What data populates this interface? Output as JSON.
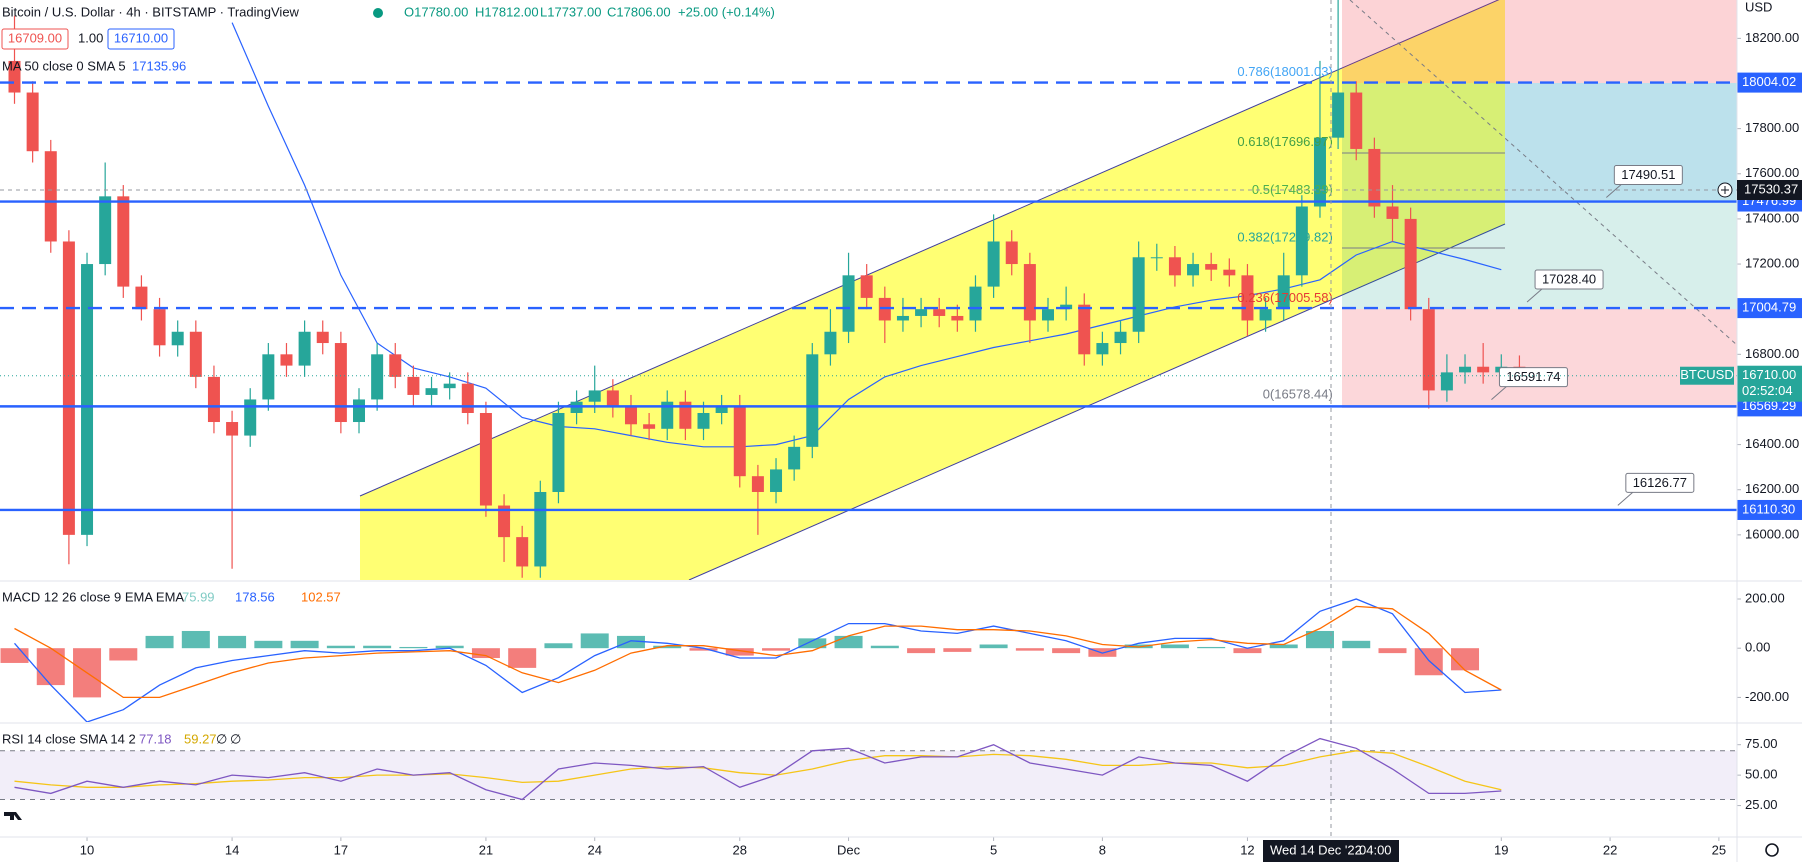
{
  "header": {
    "title": "Bitcoin / U.S. Dollar · 4h · BITSTAMP · TradingView",
    "ohlc": [
      "O17780.00",
      "H17812.00",
      "L17737.00",
      "C17806.00",
      "+25.00 (+0.14%)"
    ],
    "bid": "16709.00",
    "spread": "1.00",
    "ask": "16710.00",
    "currency": "USD",
    "symbol": "BTCUSD",
    "last_price": "16710.00",
    "countdown": "02:52:04",
    "crosshair_price": "17530.37",
    "crosshair_date": "Wed 14 Dec '22",
    "crosshair_time": "04:00"
  },
  "chart_data": [
    {
      "type": "candlestick",
      "x": [
        8,
        8.5,
        9,
        9.5,
        10,
        10.5,
        11,
        11.5,
        12,
        12.5,
        13,
        13.5,
        14,
        14.5,
        15,
        15.5,
        16,
        16.5,
        17,
        17.5,
        18,
        18.5,
        19,
        19.5,
        20,
        20.5,
        21,
        21.5,
        22,
        22.5,
        23,
        23.5,
        24,
        24.5,
        25,
        25.5,
        26,
        26.5,
        27,
        27.5,
        28,
        28.5,
        29,
        29.5,
        30,
        30.5,
        31,
        31.5,
        32,
        32.5,
        33,
        33.5,
        34,
        34.5,
        35,
        35.5,
        36,
        36.5,
        37,
        37.5,
        38,
        38.5,
        39,
        39.5,
        40,
        40.5,
        41,
        41.5,
        42,
        42.5,
        43,
        43.5,
        44,
        44.5,
        45,
        45.5,
        46,
        46.5,
        47,
        47.5,
        48,
        48.5,
        49,
        49.5
      ],
      "open": [
        18100,
        17960,
        17700,
        17300,
        16000,
        17200,
        17500,
        17100,
        17000,
        16840,
        16900,
        16700,
        16500,
        16440,
        16600,
        16800,
        16750,
        16900,
        16850,
        16500,
        16600,
        16800,
        16700,
        16620,
        16650,
        16670,
        16540,
        16130,
        15990,
        15860,
        16190,
        16540,
        16590,
        16640,
        16570,
        16490,
        16470,
        16590,
        16470,
        16540,
        16570,
        16260,
        16190,
        16290,
        16390,
        16800,
        16900,
        17150,
        17050,
        16950,
        16970,
        17000,
        16970,
        16950,
        17100,
        17300,
        17200,
        16950,
        17000,
        17020,
        16800,
        16850,
        16900,
        17230,
        17230,
        17150,
        17200,
        17175,
        17150,
        16950,
        17000,
        17150,
        17455,
        17760,
        17960,
        17710,
        17455,
        17400,
        17000,
        16640,
        16720,
        16745,
        16720,
        16745
      ],
      "high": [
        18300,
        18010,
        17750,
        17350,
        17250,
        17650,
        17550,
        17150,
        17050,
        16950,
        16950,
        16750,
        16550,
        16650,
        16850,
        16850,
        16950,
        16950,
        16900,
        16650,
        16850,
        16850,
        16750,
        16700,
        16720,
        16720,
        16590,
        16180,
        16040,
        16240,
        16590,
        16640,
        16750,
        16690,
        16620,
        16540,
        16640,
        16640,
        16590,
        16620,
        16620,
        16310,
        16340,
        16440,
        16850,
        17000,
        17250,
        17200,
        17100,
        17050,
        17050,
        17050,
        17020,
        17150,
        17420,
        17350,
        17250,
        17050,
        17100,
        17070,
        16900,
        16950,
        17300,
        17290,
        17280,
        17250,
        17250,
        17225,
        17200,
        17050,
        17250,
        17505,
        18100,
        18370,
        18010,
        17760,
        17550,
        17450,
        17050,
        16800,
        16800,
        16850,
        16800,
        16795
      ],
      "low": [
        17910,
        17650,
        17250,
        15870,
        15950,
        17150,
        17050,
        16950,
        16790,
        16790,
        16650,
        16450,
        15850,
        16390,
        16550,
        16700,
        16700,
        16800,
        16450,
        16450,
        16550,
        16650,
        16570,
        16570,
        16600,
        16490,
        16080,
        15880,
        15810,
        15810,
        16140,
        16490,
        16540,
        16520,
        16440,
        16420,
        16420,
        16420,
        16420,
        16490,
        16210,
        16000,
        16140,
        16240,
        16340,
        16750,
        16850,
        17000,
        16850,
        16900,
        16920,
        16920,
        16900,
        16900,
        17050,
        17150,
        16850,
        16900,
        16950,
        16750,
        16750,
        16800,
        16850,
        17170,
        17100,
        17100,
        17125,
        17100,
        16880,
        16900,
        16950,
        17100,
        17405,
        17710,
        17660,
        17405,
        17300,
        16950,
        16560,
        16590,
        16670,
        16670,
        16670,
        16660
      ],
      "close": [
        17960,
        17700,
        17300,
        16000,
        17200,
        17500,
        17100,
        17000,
        16840,
        16900,
        16700,
        16500,
        16440,
        16600,
        16800,
        16750,
        16900,
        16850,
        16500,
        16600,
        16800,
        16700,
        16620,
        16650,
        16670,
        16540,
        16130,
        15990,
        15860,
        16190,
        16540,
        16590,
        16640,
        16570,
        16490,
        16470,
        16590,
        16470,
        16540,
        16570,
        16260,
        16190,
        16290,
        16390,
        16800,
        16900,
        17150,
        17050,
        16950,
        16970,
        17000,
        16970,
        16950,
        17100,
        17300,
        17200,
        16950,
        17000,
        17020,
        16800,
        16850,
        16900,
        17230,
        17230,
        17150,
        17200,
        17175,
        17150,
        16950,
        17000,
        17150,
        17455,
        17760,
        17960,
        17710,
        17455,
        17400,
        17000,
        16640,
        16720,
        16745,
        16720,
        16745,
        16710
      ],
      "up_color": "#26a69a",
      "down_color": "#ef5350",
      "xlim": [
        7.6,
        55.5
      ],
      "xticks": [
        10,
        14,
        17,
        21,
        24,
        28,
        {
          "value": 31,
          "label": "Dec"
        },
        {
          "value": 35,
          "label": "5"
        },
        {
          "value": 38,
          "label": "8"
        },
        {
          "value": 42,
          "label": "12"
        },
        {
          "value": 49,
          "label": "19"
        },
        {
          "value": 52,
          "label": "22"
        },
        {
          "value": 55,
          "label": "25"
        }
      ],
      "ylim": [
        15800,
        18370
      ],
      "yticks": [
        {
          "value": 16000,
          "label": "16000.00"
        },
        {
          "value": 16200,
          "label": "16200.00"
        },
        {
          "value": 16400,
          "label": "16400.00"
        },
        {
          "value": 16800,
          "label": "16800.00"
        },
        {
          "value": 17200,
          "label": "17200.00"
        },
        {
          "value": 17400,
          "label": "17400.00"
        },
        {
          "value": 17600,
          "label": "17600.00"
        },
        {
          "value": 17800,
          "label": "17800.00"
        },
        {
          "value": 18200,
          "label": "18200.00"
        }
      ],
      "ma": {
        "name": "MA 50 close 0 SMA 5",
        "label": "17135.96",
        "color": "#2962ff",
        "x": [
          14,
          15,
          16,
          17,
          18,
          19,
          20,
          21,
          22,
          23,
          24,
          25,
          26,
          27,
          28,
          29,
          30,
          31,
          32,
          33,
          34,
          35,
          36,
          37,
          38,
          39,
          40,
          41,
          42,
          43,
          44,
          45,
          46,
          47,
          48,
          49
        ],
        "values": [
          18270,
          17900,
          17550,
          17150,
          16850,
          16740,
          16700,
          16650,
          16520,
          16480,
          16470,
          16440,
          16410,
          16390,
          16390,
          16400,
          16440,
          16600,
          16700,
          16750,
          16790,
          16830,
          16860,
          16890,
          16930,
          16970,
          17010,
          17040,
          17060,
          17090,
          17130,
          17240,
          17300,
          17260,
          17220,
          17175
        ]
      },
      "level_color": "#2962ff",
      "levels": [
        {
          "value": 18004.02,
          "label": "18004.02",
          "style": "dashed"
        },
        {
          "value": 17476.99,
          "label": "17476.99",
          "style": "solid"
        },
        {
          "value": 17004.79,
          "label": "17004.79",
          "style": "dashed"
        },
        {
          "value": 16569.29,
          "label": "16569.29",
          "style": "solid"
        },
        {
          "value": 16110.3,
          "label": "16110.30",
          "style": "solid"
        }
      ],
      "fibonacci": [
        "0.786(18001.03)",
        "0.618(17696.97)",
        "0.5(17483.39)",
        "0.382(17269.82)",
        "0.236(17005.58)",
        "0(16578.44)"
      ],
      "callouts": [
        "17490.51",
        "17028.40",
        "16591.74",
        "16126.77"
      ]
    },
    {
      "type": "macd",
      "title": "MACD 12 26 close 9 EMA EMA",
      "readout": [
        "75.99",
        "178.56",
        "102.57"
      ],
      "x": [
        8,
        9,
        10,
        11,
        12,
        13,
        14,
        15,
        16,
        17,
        18,
        19,
        20,
        21,
        22,
        23,
        24,
        25,
        26,
        27,
        28,
        29,
        30,
        31,
        32,
        33,
        34,
        35,
        36,
        37,
        38,
        39,
        40,
        41,
        42,
        43,
        44,
        45,
        46,
        47,
        48,
        49
      ],
      "macd": [
        20,
        -150,
        -300,
        -250,
        -150,
        -80,
        -50,
        -30,
        -10,
        -20,
        -10,
        -10,
        0,
        -70,
        -180,
        -120,
        -30,
        30,
        20,
        0,
        -40,
        -40,
        30,
        100,
        100,
        70,
        60,
        90,
        60,
        30,
        -20,
        20,
        40,
        40,
        0,
        30,
        150,
        200,
        140,
        -50,
        -180,
        -170
      ],
      "signal": [
        80,
        0,
        -100,
        -200,
        -200,
        -150,
        -100,
        -60,
        -40,
        -30,
        -20,
        -15,
        -10,
        -30,
        -100,
        -140,
        -90,
        -20,
        10,
        10,
        -10,
        -30,
        -10,
        50,
        90,
        90,
        75,
        75,
        70,
        50,
        15,
        5,
        25,
        35,
        20,
        15,
        80,
        170,
        160,
        60,
        -90,
        -170
      ],
      "histogram": [
        -60,
        -150,
        -200,
        -50,
        50,
        70,
        50,
        30,
        30,
        10,
        10,
        5,
        10,
        -40,
        -80,
        20,
        60,
        50,
        10,
        -10,
        -30,
        -10,
        40,
        50,
        10,
        -20,
        -15,
        15,
        -10,
        -20,
        -35,
        15,
        15,
        5,
        -20,
        15,
        70,
        30,
        -20,
        -110,
        -90,
        0
      ],
      "macd_color": "#2962ff",
      "signal_color": "#ff6d00",
      "up_color": "#26a69a",
      "down_color": "#ef5350",
      "ylim": [
        -300,
        265
      ],
      "yticks": [
        {
          "value": 200,
          "label": "200.00"
        },
        {
          "value": 0,
          "label": "0.00"
        },
        {
          "value": -200,
          "label": "-200.00"
        }
      ]
    },
    {
      "type": "rsi",
      "title": "RSI 14 close SMA 14 2",
      "readout": [
        "77.18",
        "59.27",
        "∅",
        "∅"
      ],
      "x": [
        8,
        9,
        10,
        11,
        12,
        13,
        14,
        15,
        16,
        17,
        18,
        19,
        20,
        21,
        22,
        23,
        24,
        25,
        26,
        27,
        28,
        29,
        30,
        31,
        32,
        33,
        34,
        35,
        36,
        37,
        38,
        39,
        40,
        41,
        42,
        43,
        44,
        45,
        46,
        47,
        48,
        49
      ],
      "values": [
        40,
        35,
        45,
        40,
        45,
        42,
        50,
        48,
        52,
        45,
        55,
        50,
        52,
        38,
        30,
        55,
        60,
        58,
        55,
        57,
        40,
        50,
        70,
        72,
        60,
        65,
        65,
        75,
        60,
        55,
        50,
        65,
        60,
        58,
        45,
        65,
        80,
        72,
        55,
        35,
        35,
        37
      ],
      "sma": [
        45,
        42,
        40,
        40,
        42,
        43,
        45,
        46,
        48,
        48,
        50,
        50,
        51,
        48,
        44,
        45,
        50,
        55,
        57,
        56,
        52,
        50,
        55,
        62,
        66,
        66,
        65,
        67,
        66,
        63,
        58,
        58,
        60,
        60,
        56,
        58,
        65,
        70,
        68,
        57,
        45,
        38
      ],
      "band": [
        30,
        70
      ],
      "color": "#7e57c2",
      "sma_color": "#f5c518",
      "ylim": [
        0,
        92
      ],
      "yticks": [
        {
          "value": 75,
          "label": "75.00"
        },
        {
          "value": 50,
          "label": "50.00"
        },
        {
          "value": 25,
          "label": "25.00"
        }
      ]
    }
  ]
}
